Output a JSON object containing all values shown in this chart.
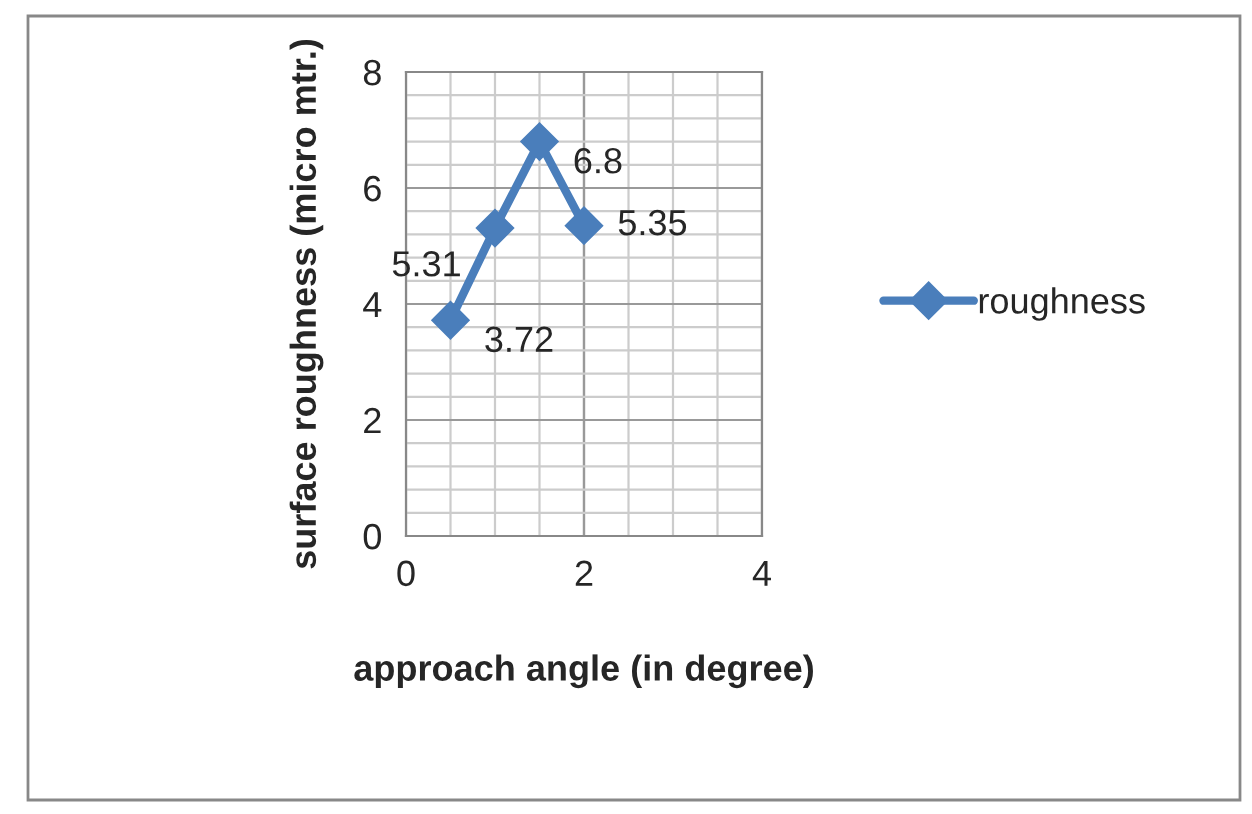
{
  "chart_data": {
    "type": "line",
    "xlabel": "approach angle (in degree)",
    "ylabel": "surface roughness (micro mtr.)",
    "x": [
      0.5,
      1,
      1.5,
      2
    ],
    "series": [
      {
        "name": "roughness",
        "color": "#4a7ebb",
        "values": [
          3.72,
          5.31,
          6.8,
          5.35
        ]
      }
    ],
    "xlim": [
      0,
      4
    ],
    "xticks": [
      0,
      2,
      4
    ],
    "ylim": [
      0,
      8
    ],
    "yticks": [
      0,
      2,
      4,
      6,
      8
    ],
    "grid": true,
    "legend": "right",
    "marker": "diamond",
    "line_style": "solid",
    "data_labels": true
  }
}
